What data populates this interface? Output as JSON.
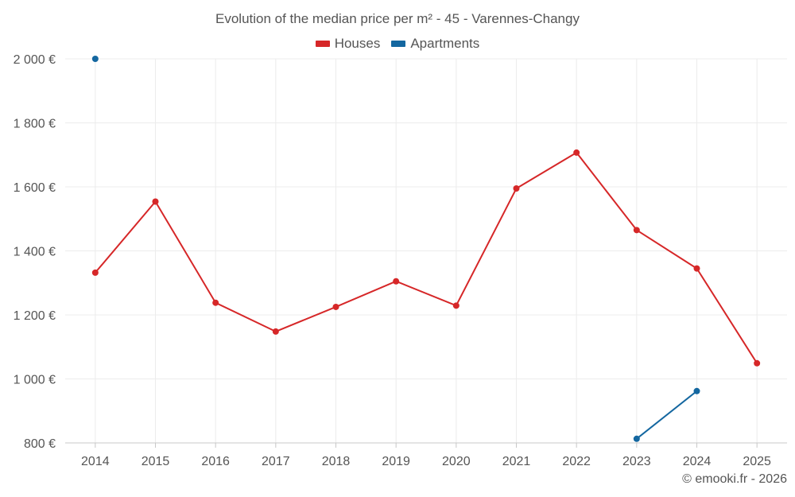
{
  "chart_data": {
    "type": "line",
    "title": "Evolution of the median price per m² - 45 - Varennes-Changy",
    "categories": [
      "2014",
      "2015",
      "2016",
      "2017",
      "2018",
      "2019",
      "2020",
      "2021",
      "2022",
      "2023",
      "2024",
      "2025"
    ],
    "ylim": [
      800,
      2000
    ],
    "yticks": [
      800,
      1000,
      1200,
      1400,
      1600,
      1800,
      2000
    ],
    "ytick_labels": [
      "800 €",
      "1 000 €",
      "1 200 €",
      "1 400 €",
      "1 600 €",
      "1 800 €",
      "2 000 €"
    ],
    "grid": true,
    "legend_position": "top-center",
    "series": [
      {
        "name": "Houses",
        "color": "#d62728",
        "values": [
          1332,
          1554,
          1238,
          1148,
          1225,
          1305,
          1229,
          1595,
          1707,
          1465,
          1345,
          1049
        ]
      },
      {
        "name": "Apartments",
        "color": "#1467a0",
        "values": [
          2000,
          null,
          null,
          null,
          null,
          null,
          null,
          null,
          null,
          813,
          962,
          null
        ]
      }
    ]
  },
  "footer": {
    "credit": "© emooki.fr - 2026"
  }
}
